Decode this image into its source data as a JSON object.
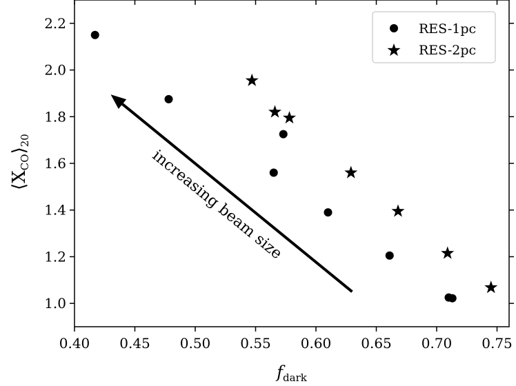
{
  "chart_data": {
    "type": "scatter",
    "xlabel": "f",
    "xlabel_sub": "dark",
    "ylabel": "⟨X",
    "ylabel_sub": "CO",
    "ylabel_close": "⟩",
    "ylabel_sub2": "20",
    "xlim": [
      0.4,
      0.76
    ],
    "ylim": [
      0.9,
      2.3
    ],
    "xticks": [
      0.4,
      0.45,
      0.5,
      0.55,
      0.6,
      0.65,
      0.7,
      0.75
    ],
    "yticks": [
      1.0,
      1.2,
      1.4,
      1.6,
      1.8,
      2.0,
      2.2
    ],
    "xtick_labels": [
      "0.40",
      "0.45",
      "0.50",
      "0.55",
      "0.60",
      "0.65",
      "0.70",
      "0.75"
    ],
    "ytick_labels": [
      "1.0",
      "1.2",
      "1.4",
      "1.6",
      "1.8",
      "2.0",
      "2.2"
    ],
    "grid": false,
    "legend_position": "top-right",
    "series": [
      {
        "name": "RES-1pc",
        "marker": "circle",
        "color": "#000000",
        "points": [
          {
            "x": 0.417,
            "y": 2.15
          },
          {
            "x": 0.478,
            "y": 1.875
          },
          {
            "x": 0.573,
            "y": 1.725
          },
          {
            "x": 0.565,
            "y": 1.56
          },
          {
            "x": 0.61,
            "y": 1.39
          },
          {
            "x": 0.661,
            "y": 1.205
          },
          {
            "x": 0.71,
            "y": 1.025
          },
          {
            "x": 0.713,
            "y": 1.022
          }
        ]
      },
      {
        "name": "RES-2pc",
        "marker": "star",
        "color": "#000000",
        "points": [
          {
            "x": 0.547,
            "y": 1.955
          },
          {
            "x": 0.566,
            "y": 1.82
          },
          {
            "x": 0.578,
            "y": 1.795
          },
          {
            "x": 0.629,
            "y": 1.56
          },
          {
            "x": 0.668,
            "y": 1.395
          },
          {
            "x": 0.709,
            "y": 1.215
          },
          {
            "x": 0.745,
            "y": 1.068
          }
        ]
      }
    ],
    "annotation": {
      "text": "increasing beam size",
      "arrow_from": {
        "x": 0.63,
        "y": 1.05
      },
      "arrow_to": {
        "x": 0.43,
        "y": 1.895
      }
    }
  }
}
